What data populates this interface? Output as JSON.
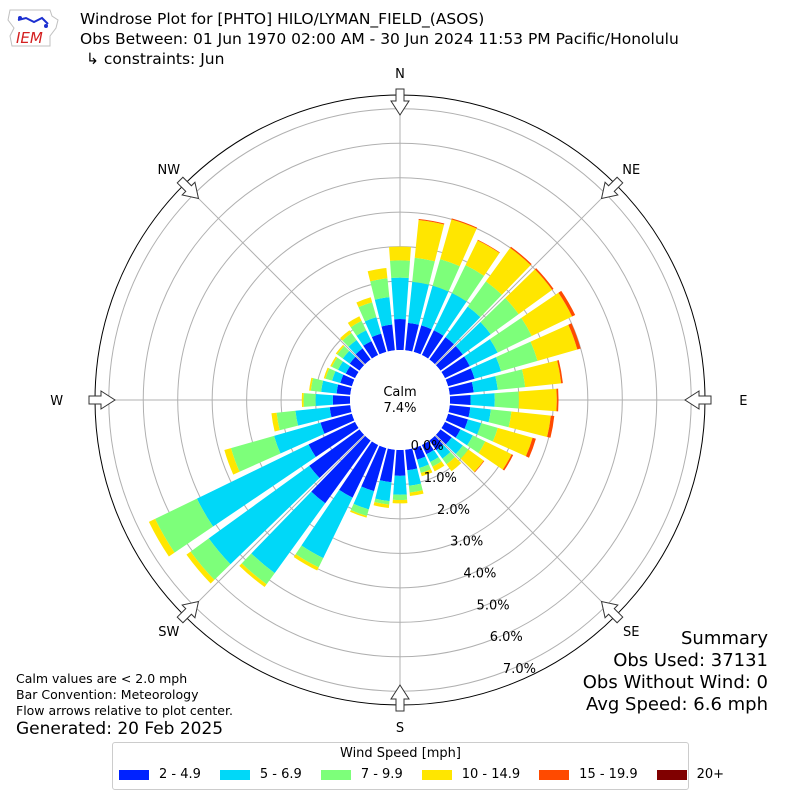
{
  "title": {
    "line1": "Windrose Plot for [PHTO] HILO/LYMAN_FIELD_(ASOS)",
    "line2": "Obs Between: 01 Jun 1970 02:00 AM - 30 Jun 2024 11:53 PM Pacific/Honolulu",
    "line3": "↳ constraints: Jun"
  },
  "logo": {
    "text": "IEM",
    "color": "#d42020"
  },
  "notes": {
    "calm": "Calm values are < 2.0 mph",
    "bar": "Bar Convention: Meteorology",
    "flow": "Flow arrows relative to plot center."
  },
  "generated": "Generated: 20 Feb 2025",
  "summary": {
    "title": "Summary",
    "obs_used": "Obs Used: 37131",
    "obs_without_wind": "Obs Without Wind: 0",
    "avg_speed": "Avg Speed: 6.6 mph"
  },
  "chart_data": {
    "type": "windrose",
    "calm_label": "Calm",
    "calm_value": "7.4%",
    "radial_unit": "percent",
    "radial_ticks": [
      "0.0%",
      "1.0%",
      "2.0%",
      "3.0%",
      "4.0%",
      "5.0%",
      "6.0%",
      "7.0%"
    ],
    "radial_tick_values": [
      0,
      1,
      2,
      3,
      4,
      5,
      6,
      7
    ],
    "radial_max": 7.4,
    "compass": [
      "N",
      "NE",
      "E",
      "SE",
      "S",
      "SW",
      "W",
      "NW"
    ],
    "compass_angles": [
      0,
      45,
      90,
      135,
      180,
      225,
      270,
      315
    ],
    "direction_bin_width_deg": 10,
    "legend_title": "Wind Speed [mph]",
    "speed_bins": [
      {
        "label": "2 - 4.9",
        "color": "#0022ff"
      },
      {
        "label": "5 - 6.9",
        "color": "#00d8f8"
      },
      {
        "label": "7 - 9.9",
        "color": "#7dff7a"
      },
      {
        "label": "10 - 14.9",
        "color": "#ffe600"
      },
      {
        "label": "15 - 19.9",
        "color": "#ff4a00"
      },
      {
        "label": "20+",
        "color": "#800000"
      }
    ],
    "directions": [
      {
        "dir": 0,
        "cum": [
          0.9,
          2.1,
          2.6,
          3.0,
          3.0,
          3.0
        ]
      },
      {
        "dir": 10,
        "cum": [
          0.8,
          2.0,
          2.7,
          3.8,
          3.83,
          3.83
        ]
      },
      {
        "dir": 20,
        "cum": [
          0.8,
          2.0,
          2.8,
          4.0,
          4.03,
          4.03
        ]
      },
      {
        "dir": 30,
        "cum": [
          0.8,
          2.0,
          2.9,
          3.7,
          3.72,
          3.72
        ]
      },
      {
        "dir": 40,
        "cum": [
          0.8,
          1.9,
          2.8,
          4.0,
          4.04,
          4.04
        ]
      },
      {
        "dir": 50,
        "cum": [
          0.8,
          1.8,
          2.8,
          4.0,
          4.05,
          4.05
        ]
      },
      {
        "dir": 60,
        "cum": [
          0.8,
          1.7,
          2.8,
          4.1,
          4.2,
          4.2
        ]
      },
      {
        "dir": 70,
        "cum": [
          0.8,
          1.6,
          2.7,
          3.9,
          4.0,
          4.0
        ]
      },
      {
        "dir": 80,
        "cum": [
          0.7,
          1.4,
          2.2,
          3.25,
          3.3,
          3.3
        ]
      },
      {
        "dir": 90,
        "cum": [
          0.6,
          1.3,
          2.0,
          3.1,
          3.15,
          3.15
        ]
      },
      {
        "dir": 100,
        "cum": [
          0.6,
          1.2,
          1.8,
          2.95,
          3.05,
          3.05
        ]
      },
      {
        "dir": 110,
        "cum": [
          0.6,
          1.0,
          1.5,
          2.55,
          2.65,
          2.65
        ]
      },
      {
        "dir": 120,
        "cum": [
          0.5,
          0.9,
          1.3,
          2.15,
          2.2,
          2.2
        ]
      },
      {
        "dir": 130,
        "cum": [
          0.4,
          0.8,
          1.0,
          1.55,
          1.57,
          1.57
        ]
      },
      {
        "dir": 140,
        "cum": [
          0.35,
          0.65,
          0.85,
          1.1,
          1.1,
          1.1
        ]
      },
      {
        "dir": 150,
        "cum": [
          0.3,
          0.55,
          0.7,
          0.85,
          0.85,
          0.85
        ]
      },
      {
        "dir": 160,
        "cum": [
          0.35,
          0.6,
          0.75,
          0.85,
          0.85,
          0.85
        ]
      },
      {
        "dir": 170,
        "cum": [
          0.6,
          1.05,
          1.25,
          1.35,
          1.35,
          1.35
        ]
      },
      {
        "dir": 180,
        "cum": [
          0.75,
          1.3,
          1.45,
          1.55,
          1.55,
          1.55
        ]
      },
      {
        "dir": 190,
        "cum": [
          0.95,
          1.5,
          1.6,
          1.7,
          1.7,
          1.7
        ]
      },
      {
        "dir": 200,
        "cum": [
          1.3,
          1.85,
          2.05,
          2.1,
          2.1,
          2.1
        ]
      },
      {
        "dir": 210,
        "cum": [
          1.7,
          3.65,
          3.95,
          4.05,
          4.05,
          4.05
        ]
      },
      {
        "dir": 220,
        "cum": [
          2.25,
          4.75,
          5.15,
          5.25,
          5.25,
          5.25
        ]
      },
      {
        "dir": 230,
        "cum": [
          1.8,
          5.4,
          6.05,
          6.2,
          6.2,
          6.2
        ]
      },
      {
        "dir": 240,
        "cum": [
          1.5,
          5.1,
          6.45,
          6.65,
          6.65,
          6.65
        ]
      },
      {
        "dir": 250,
        "cum": [
          0.95,
          2.35,
          3.65,
          3.85,
          3.85,
          3.85
        ]
      },
      {
        "dir": 260,
        "cum": [
          0.6,
          1.6,
          2.15,
          2.3,
          2.3,
          2.3
        ]
      },
      {
        "dir": 270,
        "cum": [
          0.5,
          1.0,
          1.35,
          1.4,
          1.4,
          1.4
        ]
      },
      {
        "dir": 280,
        "cum": [
          0.4,
          0.85,
          1.15,
          1.2,
          1.2,
          1.2
        ]
      },
      {
        "dir": 290,
        "cum": [
          0.35,
          0.6,
          0.8,
          0.85,
          0.85,
          0.85
        ]
      },
      {
        "dir": 300,
        "cum": [
          0.3,
          0.55,
          0.75,
          0.8,
          0.8,
          0.8
        ]
      },
      {
        "dir": 310,
        "cum": [
          0.35,
          0.6,
          0.8,
          0.85,
          0.85,
          0.85
        ]
      },
      {
        "dir": 320,
        "cum": [
          0.4,
          0.7,
          0.95,
          1.05,
          1.05,
          1.05
        ]
      },
      {
        "dir": 330,
        "cum": [
          0.45,
          0.8,
          1.1,
          1.25,
          1.25,
          1.25
        ]
      },
      {
        "dir": 340,
        "cum": [
          0.55,
          1.05,
          1.5,
          1.65,
          1.65,
          1.65
        ]
      },
      {
        "dir": 350,
        "cum": [
          0.75,
          1.55,
          2.1,
          2.4,
          2.4,
          2.4
        ]
      }
    ]
  }
}
